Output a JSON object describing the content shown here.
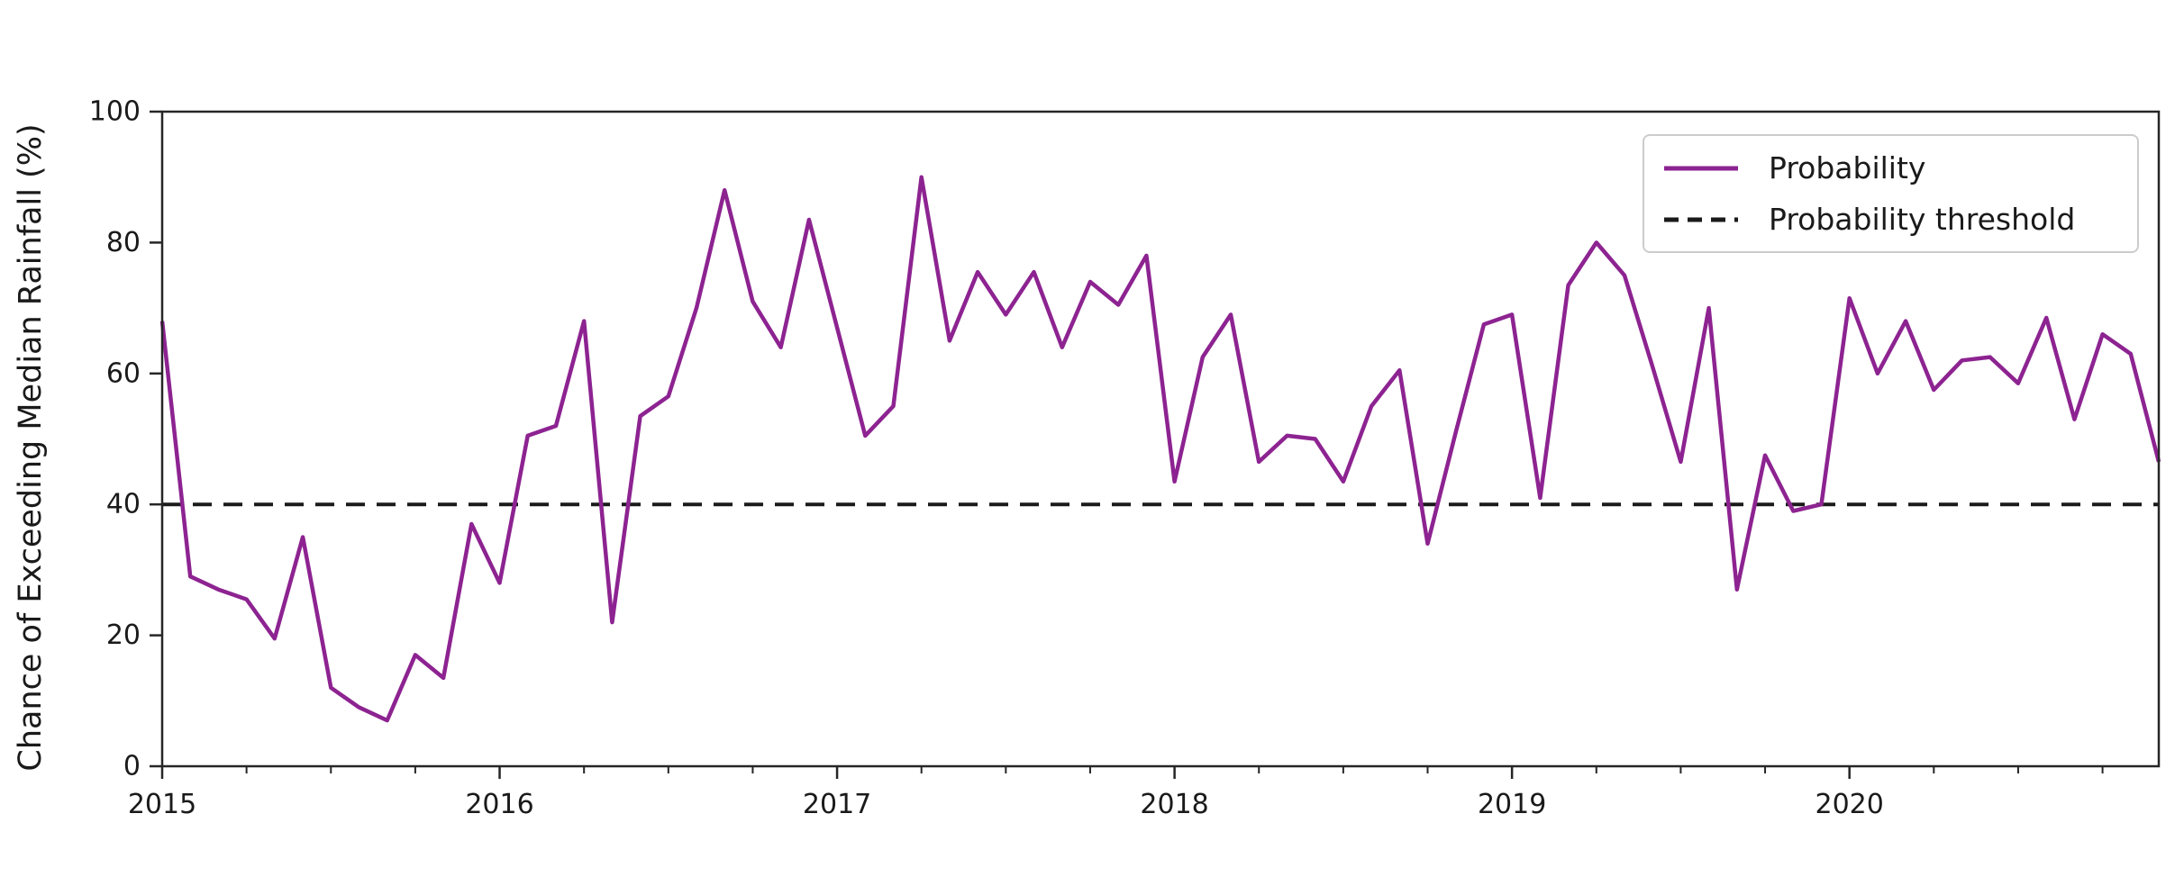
{
  "figure": {
    "ylabel": "Chance of Exceeding Median Rainfall (%)",
    "legend": {
      "probability_label": "Probability",
      "threshold_label": "Probability threshold"
    }
  },
  "colors": {
    "probability_line": "#8d2391",
    "threshold_line": "#1a1a1a",
    "axis": "#262626",
    "text": "#1a1a1a",
    "legend_border": "#cccccc",
    "background": "#ffffff"
  },
  "chart_data": {
    "type": "line",
    "title": "",
    "xlabel": "",
    "ylabel": "Chance of Exceeding Median Rainfall (%)",
    "ylim": [
      0,
      100
    ],
    "y_ticks": [
      0,
      20,
      40,
      60,
      80,
      100
    ],
    "x_tick_labels": [
      "2015",
      "2016",
      "2017",
      "2018",
      "2019",
      "2020"
    ],
    "x_minor_tick_interval_months": 3,
    "grid": false,
    "legend_position": "upper right",
    "x_months": [
      "2015-01",
      "2015-02",
      "2015-03",
      "2015-04",
      "2015-05",
      "2015-06",
      "2015-07",
      "2015-08",
      "2015-09",
      "2015-10",
      "2015-11",
      "2015-12",
      "2016-01",
      "2016-02",
      "2016-03",
      "2016-04",
      "2016-05",
      "2016-06",
      "2016-07",
      "2016-08",
      "2016-09",
      "2016-10",
      "2016-11",
      "2016-12",
      "2017-01",
      "2017-02",
      "2017-03",
      "2017-04",
      "2017-05",
      "2017-06",
      "2017-07",
      "2017-08",
      "2017-09",
      "2017-10",
      "2017-11",
      "2017-12",
      "2018-01",
      "2018-02",
      "2018-03",
      "2018-04",
      "2018-05",
      "2018-06",
      "2018-07",
      "2018-08",
      "2018-09",
      "2018-10",
      "2018-11",
      "2018-12",
      "2019-01",
      "2019-02",
      "2019-03",
      "2019-04",
      "2019-05",
      "2019-06",
      "2019-07",
      "2019-08",
      "2019-09",
      "2019-10",
      "2019-11",
      "2019-12",
      "2020-01",
      "2020-02",
      "2020-03",
      "2020-04",
      "2020-05",
      "2020-06",
      "2020-07",
      "2020-08",
      "2020-09",
      "2020-10",
      "2020-11",
      "2020-12"
    ],
    "series": [
      {
        "name": "Probability",
        "style": "solid",
        "color": "#8d2391",
        "values": [
          68,
          29,
          27,
          25.5,
          19.5,
          35,
          12,
          9,
          7,
          17,
          13.5,
          37,
          28,
          50.5,
          52,
          68,
          22,
          53.5,
          56.5,
          70,
          88,
          71,
          64,
          83.5,
          67,
          50.5,
          55,
          90,
          65,
          75.5,
          69,
          75.5,
          64,
          74,
          70.5,
          78,
          43.5,
          62.5,
          69,
          46.5,
          50.5,
          50,
          43.5,
          55,
          60.5,
          34,
          51,
          67.5,
          69,
          41,
          73.5,
          80,
          75,
          61,
          46.5,
          70,
          27,
          47.5,
          39,
          40,
          71.5,
          60,
          68,
          57.5,
          62,
          62.5,
          58.5,
          68.5,
          53,
          66,
          63,
          46.5
        ]
      },
      {
        "name": "Probability threshold",
        "style": "dashed",
        "color": "#1a1a1a",
        "value": 40
      }
    ]
  }
}
